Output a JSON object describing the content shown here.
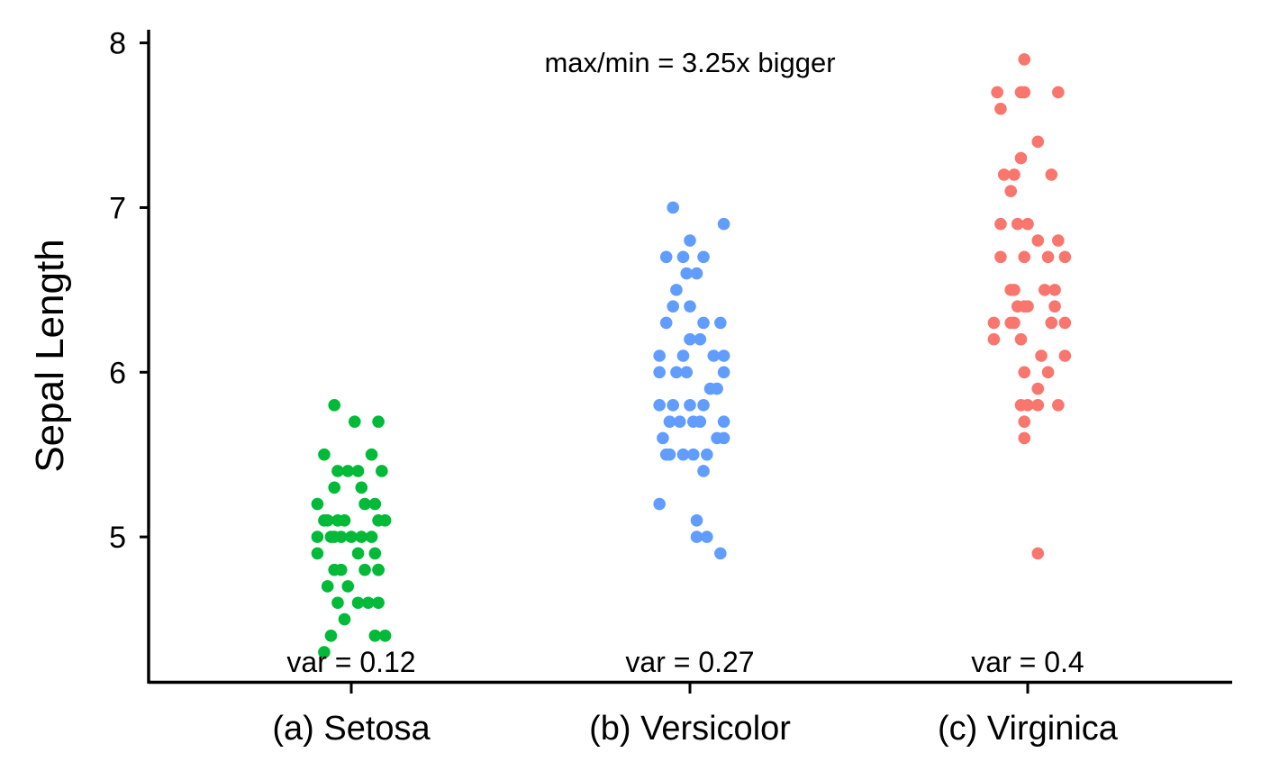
{
  "chart_data": {
    "type": "scatter",
    "title": "",
    "xlabel": "",
    "ylabel": "Sepal Length",
    "ylim": [
      4.12,
      8.08
    ],
    "yticks": [
      5,
      6,
      7,
      8
    ],
    "grid": false,
    "legend": "none",
    "categories": [
      "(a) Setosa",
      "(b) Versicolor",
      "(c) Virginica"
    ],
    "annotation": "max/min = 3.25x bigger",
    "series": [
      {
        "category": "(a) Setosa",
        "color": "#00BA38",
        "variance_label": "var = 0.12",
        "points": [
          {
            "dx": -0.05,
            "y": 5.8
          },
          {
            "dx": 0.01,
            "y": 5.7
          },
          {
            "dx": 0.08,
            "y": 5.7
          },
          {
            "dx": -0.08,
            "y": 5.5
          },
          {
            "dx": 0.06,
            "y": 5.5
          },
          {
            "dx": 0.09,
            "y": 5.4
          },
          {
            "dx": -0.01,
            "y": 5.4
          },
          {
            "dx": 0.02,
            "y": 5.4
          },
          {
            "dx": -0.04,
            "y": 5.4
          },
          {
            "dx": -0.05,
            "y": 5.3
          },
          {
            "dx": 0.03,
            "y": 5.3
          },
          {
            "dx": -0.1,
            "y": 5.2
          },
          {
            "dx": 0.04,
            "y": 5.2
          },
          {
            "dx": 0.07,
            "y": 5.2
          },
          {
            "dx": -0.07,
            "y": 5.1
          },
          {
            "dx": 0.1,
            "y": 5.1
          },
          {
            "dx": -0.04,
            "y": 5.1
          },
          {
            "dx": 0.08,
            "y": 5.1
          },
          {
            "dx": -0.08,
            "y": 5.1
          },
          {
            "dx": -0.02,
            "y": 5.1
          },
          {
            "dx": -0.05,
            "y": 5.0
          },
          {
            "dx": -0.03,
            "y": 5.0
          },
          {
            "dx": 0.0,
            "y": 5.0
          },
          {
            "dx": 0.03,
            "y": 5.0
          },
          {
            "dx": 0.06,
            "y": 5.0
          },
          {
            "dx": -0.1,
            "y": 5.0
          },
          {
            "dx": -0.06,
            "y": 5.0
          },
          {
            "dx": -0.1,
            "y": 4.9
          },
          {
            "dx": 0.07,
            "y": 4.9
          },
          {
            "dx": 0.02,
            "y": 4.9
          },
          {
            "dx": 0.08,
            "y": 4.8
          },
          {
            "dx": -0.03,
            "y": 4.8
          },
          {
            "dx": 0.04,
            "y": 4.8
          },
          {
            "dx": -0.05,
            "y": 4.8
          },
          {
            "dx": 0.08,
            "y": 4.8
          },
          {
            "dx": -0.07,
            "y": 4.7
          },
          {
            "dx": -0.01,
            "y": 4.7
          },
          {
            "dx": -0.04,
            "y": 4.6
          },
          {
            "dx": 0.02,
            "y": 4.6
          },
          {
            "dx": 0.05,
            "y": 4.6
          },
          {
            "dx": 0.08,
            "y": 4.6
          },
          {
            "dx": -0.02,
            "y": 4.5
          },
          {
            "dx": 0.1,
            "y": 4.4
          },
          {
            "dx": -0.06,
            "y": 4.4
          },
          {
            "dx": 0.07,
            "y": 4.4
          },
          {
            "dx": -0.08,
            "y": 4.3
          }
        ]
      },
      {
        "category": "(b) Versicolor",
        "color": "#619CFF",
        "variance_label": "var = 0.27",
        "points": [
          {
            "dx": -0.05,
            "y": 7.0
          },
          {
            "dx": 0.1,
            "y": 6.9
          },
          {
            "dx": 0.0,
            "y": 6.8
          },
          {
            "dx": 0.04,
            "y": 6.7
          },
          {
            "dx": -0.07,
            "y": 6.7
          },
          {
            "dx": -0.02,
            "y": 6.7
          },
          {
            "dx": 0.02,
            "y": 6.6
          },
          {
            "dx": -0.01,
            "y": 6.6
          },
          {
            "dx": -0.04,
            "y": 6.5
          },
          {
            "dx": -0.05,
            "y": 6.4
          },
          {
            "dx": 0.0,
            "y": 6.4
          },
          {
            "dx": -0.07,
            "y": 6.3
          },
          {
            "dx": 0.04,
            "y": 6.3
          },
          {
            "dx": 0.09,
            "y": 6.3
          },
          {
            "dx": 0.0,
            "y": 6.2
          },
          {
            "dx": 0.03,
            "y": 6.2
          },
          {
            "dx": -0.09,
            "y": 6.1
          },
          {
            "dx": 0.1,
            "y": 6.1
          },
          {
            "dx": -0.02,
            "y": 6.1
          },
          {
            "dx": 0.07,
            "y": 6.1
          },
          {
            "dx": -0.09,
            "y": 6.0
          },
          {
            "dx": 0.1,
            "y": 6.0
          },
          {
            "dx": -0.04,
            "y": 6.0
          },
          {
            "dx": -0.01,
            "y": 6.0
          },
          {
            "dx": 0.06,
            "y": 5.9
          },
          {
            "dx": 0.08,
            "y": 5.9
          },
          {
            "dx": -0.05,
            "y": 5.8
          },
          {
            "dx": -0.09,
            "y": 5.8
          },
          {
            "dx": 0.0,
            "y": 5.8
          },
          {
            "dx": 0.04,
            "y": 5.8
          },
          {
            "dx": -0.06,
            "y": 5.7
          },
          {
            "dx": 0.03,
            "y": 5.7
          },
          {
            "dx": 0.1,
            "y": 5.7
          },
          {
            "dx": 0.01,
            "y": 5.7
          },
          {
            "dx": -0.03,
            "y": 5.7
          },
          {
            "dx": -0.08,
            "y": 5.6
          },
          {
            "dx": 0.08,
            "y": 5.6
          },
          {
            "dx": 0.1,
            "y": 5.6
          },
          {
            "dx": -0.07,
            "y": 5.5
          },
          {
            "dx": -0.02,
            "y": 5.5
          },
          {
            "dx": 0.01,
            "y": 5.5
          },
          {
            "dx": 0.05,
            "y": 5.5
          },
          {
            "dx": -0.06,
            "y": 5.5
          },
          {
            "dx": 0.04,
            "y": 5.4
          },
          {
            "dx": -0.09,
            "y": 5.2
          },
          {
            "dx": 0.02,
            "y": 5.1
          },
          {
            "dx": 0.05,
            "y": 5.0
          },
          {
            "dx": 0.02,
            "y": 5.0
          },
          {
            "dx": 0.09,
            "y": 4.9
          }
        ]
      },
      {
        "category": "(c) Virginica",
        "color": "#F8766D",
        "variance_label": "var = 0.4",
        "points": [
          {
            "dx": -0.01,
            "y": 7.9
          },
          {
            "dx": 0.09,
            "y": 7.7
          },
          {
            "dx": -0.09,
            "y": 7.7
          },
          {
            "dx": -0.01,
            "y": 7.7
          },
          {
            "dx": -0.02,
            "y": 7.7
          },
          {
            "dx": -0.08,
            "y": 7.6
          },
          {
            "dx": 0.03,
            "y": 7.4
          },
          {
            "dx": -0.02,
            "y": 7.3
          },
          {
            "dx": -0.07,
            "y": 7.2
          },
          {
            "dx": 0.07,
            "y": 7.2
          },
          {
            "dx": -0.04,
            "y": 7.2
          },
          {
            "dx": -0.05,
            "y": 7.1
          },
          {
            "dx": -0.08,
            "y": 6.9
          },
          {
            "dx": -0.03,
            "y": 6.9
          },
          {
            "dx": 0.0,
            "y": 6.9
          },
          {
            "dx": 0.09,
            "y": 6.8
          },
          {
            "dx": 0.03,
            "y": 6.8
          },
          {
            "dx": -0.08,
            "y": 6.7
          },
          {
            "dx": 0.06,
            "y": 6.7
          },
          {
            "dx": 0.11,
            "y": 6.7
          },
          {
            "dx": -0.01,
            "y": 6.7
          },
          {
            "dx": 0.08,
            "y": 6.5
          },
          {
            "dx": 0.05,
            "y": 6.5
          },
          {
            "dx": -0.04,
            "y": 6.5
          },
          {
            "dx": -0.05,
            "y": 6.5
          },
          {
            "dx": 0.0,
            "y": 6.4
          },
          {
            "dx": 0.08,
            "y": 6.4
          },
          {
            "dx": -0.03,
            "y": 6.4
          },
          {
            "dx": -0.01,
            "y": 6.4
          },
          {
            "dx": -0.04,
            "y": 6.3
          },
          {
            "dx": 0.07,
            "y": 6.3
          },
          {
            "dx": 0.11,
            "y": 6.3
          },
          {
            "dx": -0.1,
            "y": 6.3
          },
          {
            "dx": -0.05,
            "y": 6.3
          },
          {
            "dx": 0.07,
            "y": 6.3
          },
          {
            "dx": -0.02,
            "y": 6.2
          },
          {
            "dx": -0.1,
            "y": 6.2
          },
          {
            "dx": 0.04,
            "y": 6.1
          },
          {
            "dx": 0.11,
            "y": 6.1
          },
          {
            "dx": 0.06,
            "y": 6.0
          },
          {
            "dx": -0.01,
            "y": 6.0
          },
          {
            "dx": 0.03,
            "y": 5.9
          },
          {
            "dx": -0.02,
            "y": 5.8
          },
          {
            "dx": 0.0,
            "y": 5.8
          },
          {
            "dx": 0.09,
            "y": 5.8
          },
          {
            "dx": 0.03,
            "y": 5.8
          },
          {
            "dx": -0.01,
            "y": 5.7
          },
          {
            "dx": -0.01,
            "y": 5.6
          },
          {
            "dx": 0.03,
            "y": 4.9
          }
        ]
      }
    ]
  }
}
